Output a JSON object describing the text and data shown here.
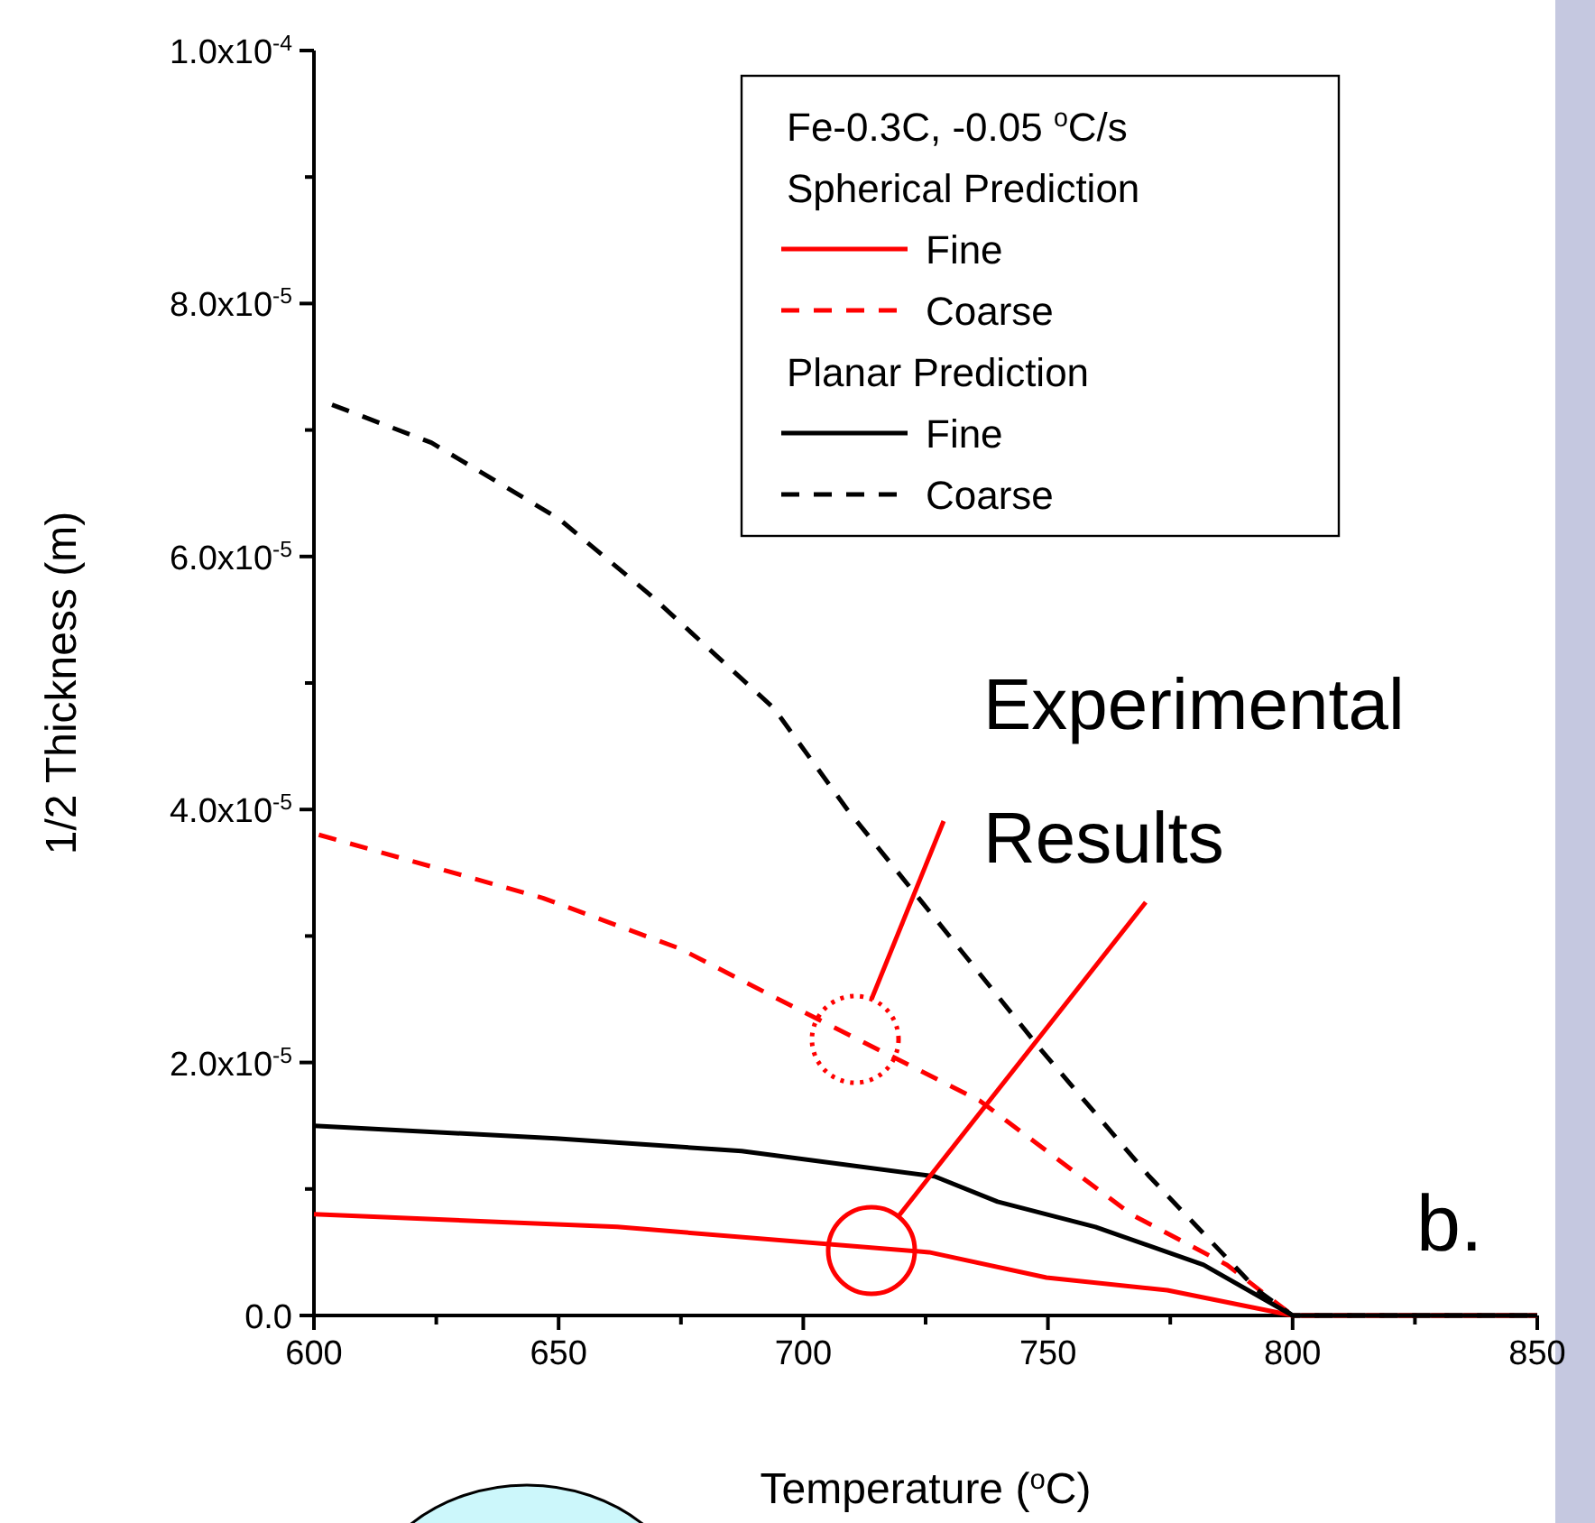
{
  "chart_data": {
    "type": "line",
    "xlabel": "Temperature ($^{o}$C)",
    "ylabel": "1/2 Thickness (m)",
    "legend_title": "Fe-0.3C, -0.05 $^{o}$C/s",
    "legend": "top right",
    "grid": false,
    "xlim": [
      600,
      850
    ],
    "ylim": [
      0,
      0.0001
    ],
    "xticks": [
      600,
      {
        "value": 625,
        "label": null
      },
      650,
      {
        "value": 675,
        "label": null
      },
      700,
      {
        "value": 725,
        "label": null
      },
      750,
      {
        "value": 775,
        "label": null
      },
      800,
      {
        "value": 825,
        "label": null
      },
      850
    ],
    "yticks": [
      {
        "value": 0,
        "label": "0.0"
      },
      {
        "value": 1e-05,
        "label": null
      },
      {
        "value": 2e-05,
        "label": "2.0x10$^{-5}$"
      },
      {
        "value": 3e-05,
        "label": null
      },
      {
        "value": 4e-05,
        "label": "4.0x10$^{-5}$"
      },
      {
        "value": 5e-05,
        "label": null
      },
      {
        "value": 6e-05,
        "label": "6.0x10$^{-5}$"
      },
      {
        "value": 7e-05,
        "label": null
      },
      {
        "value": 8e-05,
        "label": "8.0x10$^{-5}$"
      },
      {
        "value": 9e-05,
        "label": null
      },
      {
        "value": 0.0001,
        "label": "1.0x10$^{-4}$"
      }
    ],
    "annotations": [
      "Spherical Prediction",
      "Planar Prediction",
      "Experimental Results",
      "b."
    ],
    "series": [
      {
        "name": "Fine",
        "color": "#ff0000",
        "line_style": "solid",
        "x": [
          600,
          662,
          725.7,
          749.7,
          774.4,
          800,
          850
        ],
        "values": [
          8e-06,
          7e-06,
          5e-06,
          3e-06,
          2e-06,
          0,
          0
        ]
      },
      {
        "name": "Coarse",
        "color": "#ff0000",
        "line_style": "dashed",
        "x": [
          601,
          646.8,
          674.8,
          700,
          736,
          767,
          786.6,
          800,
          850
        ],
        "values": [
          3.8e-05,
          3.3e-05,
          2.9e-05,
          2.4e-05,
          1.7e-05,
          8e-06,
          4e-06,
          0,
          0
        ]
      },
      {
        "name": "Fine",
        "color": "#000000",
        "line_style": "solid",
        "x": [
          600,
          649.4,
          687.4,
          726.8,
          739.7,
          759.7,
          781.8,
          800,
          850
        ],
        "values": [
          1.5e-05,
          1.4e-05,
          1.3e-05,
          1.1e-05,
          9e-06,
          7e-06,
          4e-06,
          0,
          0
        ]
      },
      {
        "name": "Coarse",
        "color": "#000000",
        "line_style": "dashed",
        "x": [
          603.7,
          624,
          650,
          668.6,
          694,
          709,
          748.6,
          770.7,
          792.8,
          800,
          850
        ],
        "values": [
          7.2e-05,
          6.9e-05,
          6.3e-05,
          5.7e-05,
          4.8e-05,
          4e-05,
          2.1e-05,
          1.1e-05,
          2e-06,
          0,
          0
        ]
      }
    ]
  }
}
